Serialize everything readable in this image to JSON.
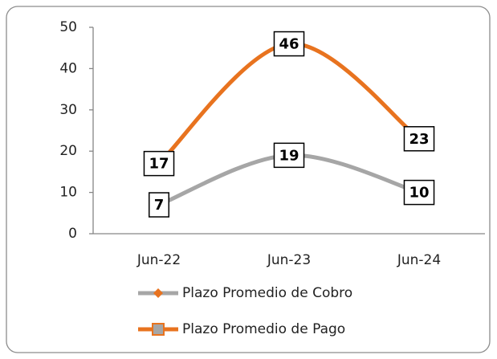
{
  "chart_data": {
    "type": "line",
    "categories": [
      "Jun-22",
      "Jun-23",
      "Jun-24"
    ],
    "series": [
      {
        "name": "Plazo Promedio de Cobro",
        "color": "#a6a6a6",
        "marker": "diamond",
        "marker_color": "#e8731f",
        "values": [
          7,
          19,
          10
        ]
      },
      {
        "name": "Plazo Promedio de Pago",
        "color": "#e8731f",
        "marker": "square",
        "marker_color": "#a6a6a6",
        "values": [
          17,
          46,
          23
        ]
      }
    ],
    "ylim": [
      0,
      50
    ],
    "yticks": [
      0,
      10,
      20,
      30,
      40,
      50
    ],
    "grid": false,
    "smooth": true,
    "legend": "bottom"
  }
}
